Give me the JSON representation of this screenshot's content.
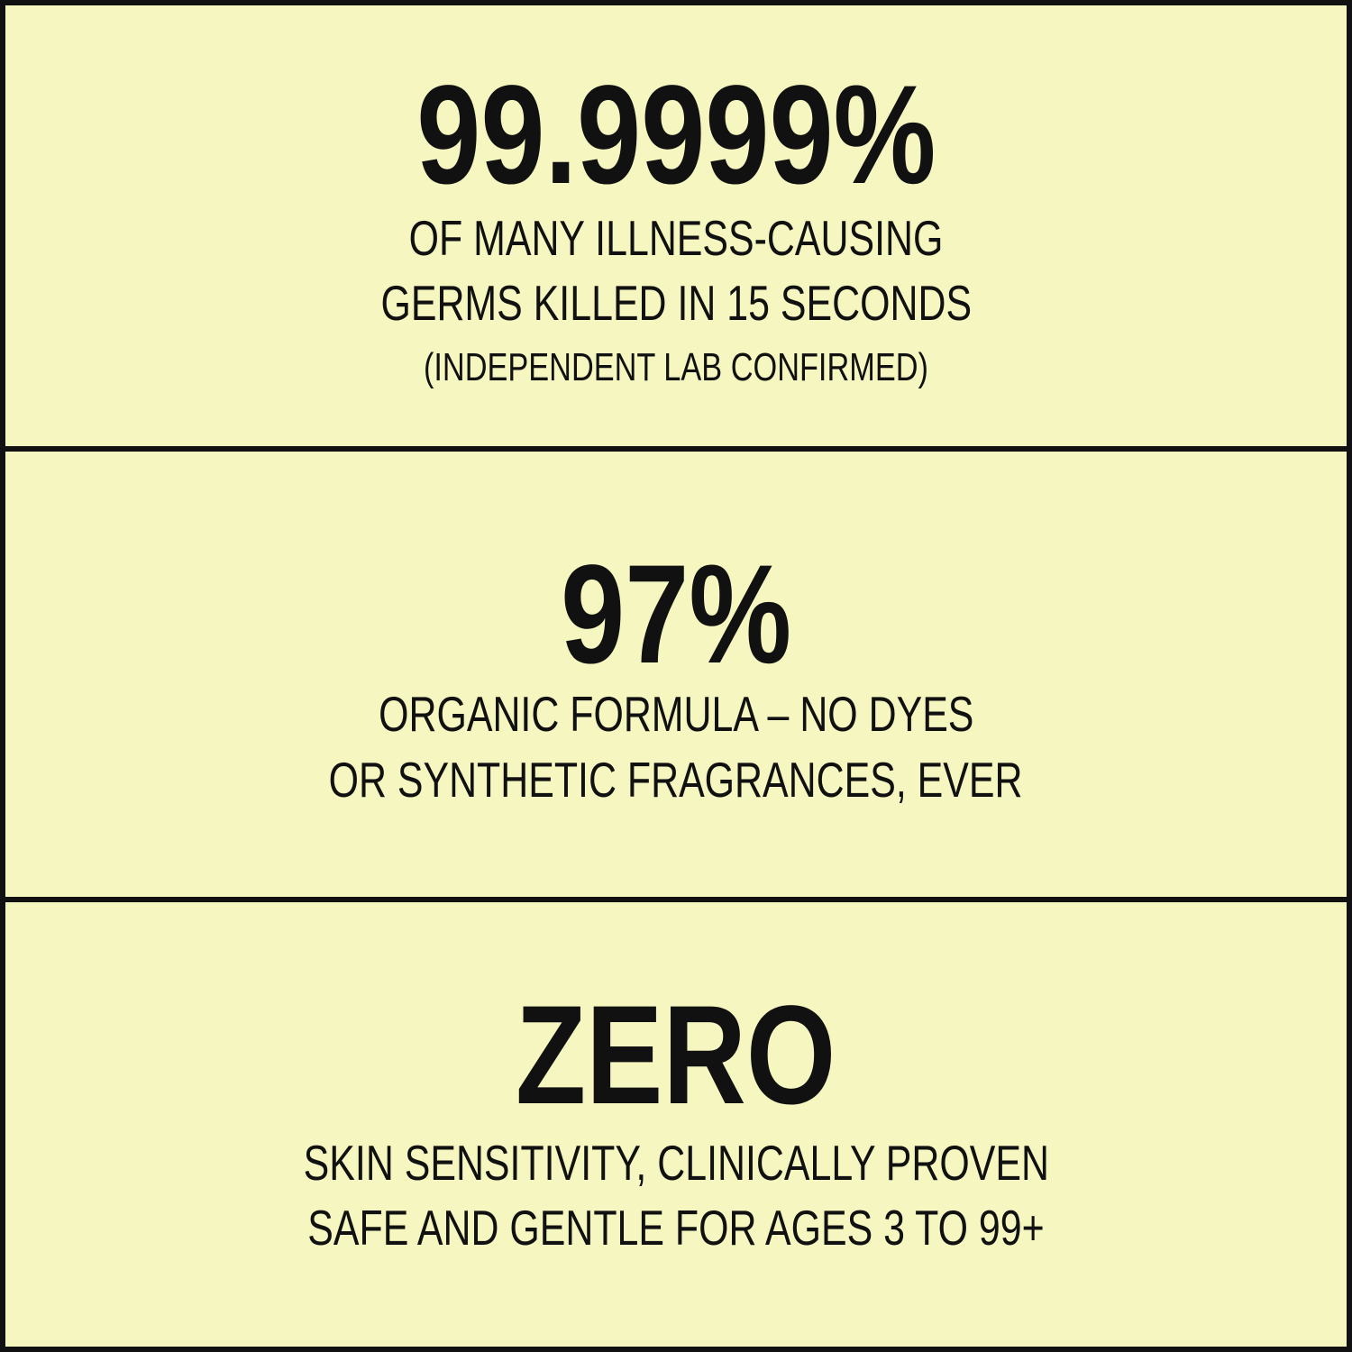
{
  "colors": {
    "background": "#f6f6c0",
    "text": "#111111",
    "border": "#111111"
  },
  "sections": [
    {
      "headline": "99.9999%",
      "lines": [
        "OF MANY ILLNESS-CAUSING",
        "GERMS KILLED IN 15 SECONDS"
      ],
      "note": "(INDEPENDENT LAB CONFIRMED)"
    },
    {
      "headline": "97%",
      "lines": [
        "ORGANIC FORMULA – NO DYES",
        "OR SYNTHETIC FRAGRANCES, EVER"
      ]
    },
    {
      "headline": "ZERO",
      "lines": [
        "SKIN SENSITIVITY, CLINICALLY PROVEN",
        "SAFE AND GENTLE FOR  AGES 3 TO 99+"
      ]
    }
  ]
}
